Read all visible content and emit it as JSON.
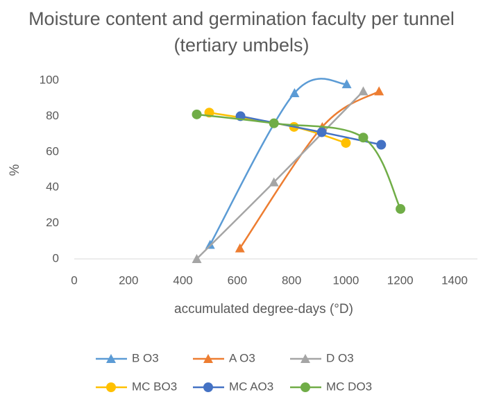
{
  "chart_data": {
    "type": "scatter",
    "title": "Moisture content and germination faculty per tunnel (tertiary umbels)",
    "xlabel": "accumulated degree-days (°D)",
    "ylabel": "%",
    "xlim": [
      0,
      1400
    ],
    "xticks": [
      0,
      200,
      400,
      600,
      800,
      1000,
      1200,
      1400
    ],
    "ylim": [
      0,
      100
    ],
    "yticks": [
      0,
      20,
      40,
      60,
      80,
      100
    ],
    "grid": false,
    "legend": "bottom",
    "series": [
      {
        "name": "B O3",
        "color": "#5b9bd5",
        "marker": "triangle",
        "x": [
          500,
          811,
          1003
        ],
        "values": [
          8,
          93,
          98
        ]
      },
      {
        "name": "A O3",
        "color": "#ed7d31",
        "marker": "triangle",
        "x": [
          610,
          913,
          1122
        ],
        "values": [
          6,
          74,
          94
        ]
      },
      {
        "name": "D O3",
        "color": "#a5a5a5",
        "marker": "triangle",
        "x": [
          451,
          735,
          1064
        ],
        "values": [
          0,
          43,
          94
        ]
      },
      {
        "name": "MC BO3",
        "color": "#ffc000",
        "marker": "circle",
        "x": [
          497,
          809,
          1000
        ],
        "values": [
          82,
          74,
          65
        ]
      },
      {
        "name": "MC AO3",
        "color": "#4472c4",
        "marker": "circle",
        "x": [
          612,
          911,
          1130
        ],
        "values": [
          80,
          71,
          64
        ]
      },
      {
        "name": "MC DO3",
        "color": "#70ad47",
        "marker": "circle",
        "x": [
          451,
          735,
          1064,
          1201
        ],
        "values": [
          81,
          76,
          68,
          28
        ]
      }
    ]
  }
}
